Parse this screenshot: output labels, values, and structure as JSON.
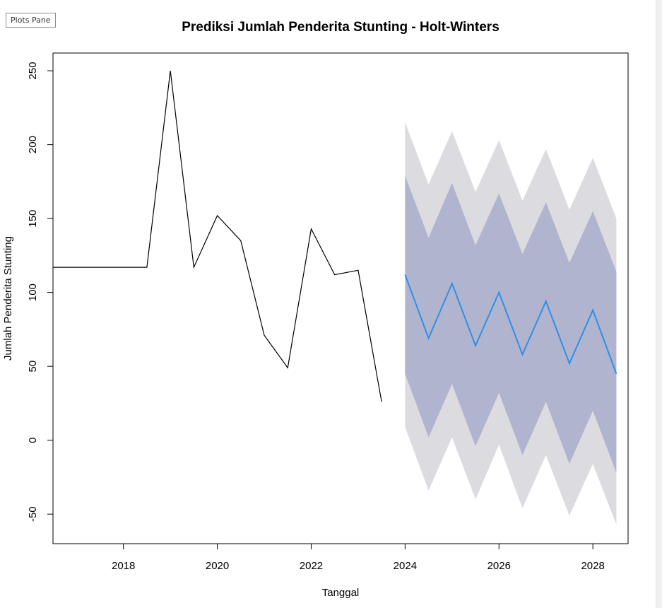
{
  "toolbar": {
    "plots_pane_label": "Plots Pane"
  },
  "chart_data": {
    "type": "line",
    "title": "Prediksi Jumlah Penderita Stunting - Holt-Winters",
    "xlabel": "Tanggal",
    "ylabel": "Jumlah Penderita Stunting",
    "xlim": [
      2016.5,
      2028.75
    ],
    "ylim": [
      -70,
      262
    ],
    "x_ticks": [
      2018,
      2020,
      2022,
      2024,
      2026,
      2028
    ],
    "y_ticks": [
      -50,
      0,
      50,
      100,
      150,
      200,
      250
    ],
    "grid": false,
    "legend": "none",
    "series": [
      {
        "kind": "observed",
        "color": "#000000",
        "x": [
          2016.5,
          2017,
          2017.5,
          2018,
          2018.5,
          2019,
          2019.5,
          2020,
          2020.5,
          2021,
          2021.5,
          2022,
          2022.5,
          2023,
          2023.5
        ],
        "values": [
          117,
          117,
          117,
          117,
          117,
          250,
          117,
          152,
          135,
          71,
          49,
          143,
          112,
          115,
          26
        ]
      },
      {
        "kind": "forecast",
        "color": "#2e8fe6",
        "x": [
          2024,
          2024.5,
          2025,
          2025.5,
          2026,
          2026.5,
          2027,
          2027.5,
          2028,
          2028.5
        ],
        "values": [
          112,
          69,
          106,
          64,
          100,
          58,
          94,
          52,
          88,
          45
        ]
      }
    ],
    "intervals": [
      {
        "level": "95%",
        "color": "#dbdbe0",
        "x": [
          2024,
          2024.5,
          2025,
          2025.5,
          2026,
          2026.5,
          2027,
          2027.5,
          2028,
          2028.5
        ],
        "upper": [
          215,
          173,
          209,
          168,
          203,
          162,
          197,
          156,
          191,
          150
        ],
        "lower": [
          9,
          -34,
          2,
          -40,
          -3,
          -46,
          -10,
          -51,
          -16,
          -57
        ]
      },
      {
        "level": "80%",
        "color": "#b1b4cf",
        "x": [
          2024,
          2024.5,
          2025,
          2025.5,
          2026,
          2026.5,
          2027,
          2027.5,
          2028,
          2028.5
        ],
        "upper": [
          179,
          137,
          174,
          132,
          167,
          126,
          161,
          120,
          155,
          114
        ],
        "lower": [
          45,
          2,
          38,
          -4,
          32,
          -10,
          26,
          -16,
          20,
          -22
        ]
      }
    ]
  }
}
